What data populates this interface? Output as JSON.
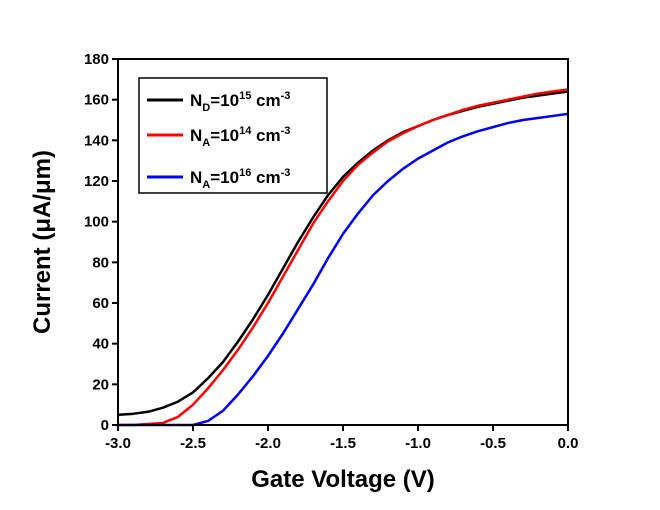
{
  "chart_data": {
    "type": "line",
    "x_label": "Gate Voltage (V)",
    "y_label": "Current (μA/μm)",
    "x": [
      -3.0,
      -2.9,
      -2.8,
      -2.7,
      -2.6,
      -2.5,
      -2.4,
      -2.3,
      -2.2,
      -2.1,
      -2.0,
      -1.9,
      -1.8,
      -1.7,
      -1.6,
      -1.5,
      -1.4,
      -1.3,
      -1.2,
      -1.1,
      -1.0,
      -0.9,
      -0.8,
      -0.7,
      -0.6,
      -0.5,
      -0.4,
      -0.3,
      -0.2,
      -0.1,
      0.0
    ],
    "series": [
      {
        "name": "N_D=10^15 cm^-3",
        "color": "#000000",
        "values": [
          5,
          5.5,
          6.5,
          8.5,
          11.5,
          16,
          23,
          31,
          41,
          52,
          64,
          77,
          90,
          102,
          113,
          122,
          129,
          135,
          140,
          144,
          147,
          150,
          152.5,
          154.5,
          156.5,
          158,
          159.5,
          161,
          162,
          163,
          164
        ]
      },
      {
        "name": "N_A=10^14 cm^-3",
        "color": "#ff0000",
        "values": [
          0,
          0,
          0.5,
          1,
          4,
          10,
          18,
          27,
          37,
          48,
          60,
          73,
          86,
          99,
          110,
          120,
          128,
          134,
          139.5,
          143.5,
          147,
          150,
          152.5,
          155,
          157,
          158.5,
          160,
          161.5,
          163,
          164,
          165
        ]
      },
      {
        "name": "N_A=10^16 cm^-3",
        "color": "#0000ff",
        "values": [
          0,
          0,
          0,
          0,
          0,
          0,
          2,
          7,
          15,
          24,
          34,
          45,
          57,
          69,
          82,
          94,
          104,
          113,
          120,
          126,
          131,
          135,
          139,
          142,
          144.5,
          146.5,
          148.5,
          150,
          151,
          152,
          153
        ]
      }
    ],
    "xlim": [
      -3.0,
      0.0
    ],
    "xticks": [
      {
        "value": -3.0,
        "label": "-3.0"
      },
      -2.5,
      {
        "value": -2.0,
        "label": "-2.0"
      },
      -1.5,
      {
        "value": -1.0,
        "label": "-1.0"
      },
      -0.5,
      {
        "value": 0.0,
        "label": "0.0"
      }
    ],
    "ylim": [
      0,
      180
    ],
    "yticks": [
      0,
      20,
      40,
      60,
      80,
      100,
      120,
      140,
      160,
      180
    ],
    "grid": false,
    "legend": "upper left"
  }
}
